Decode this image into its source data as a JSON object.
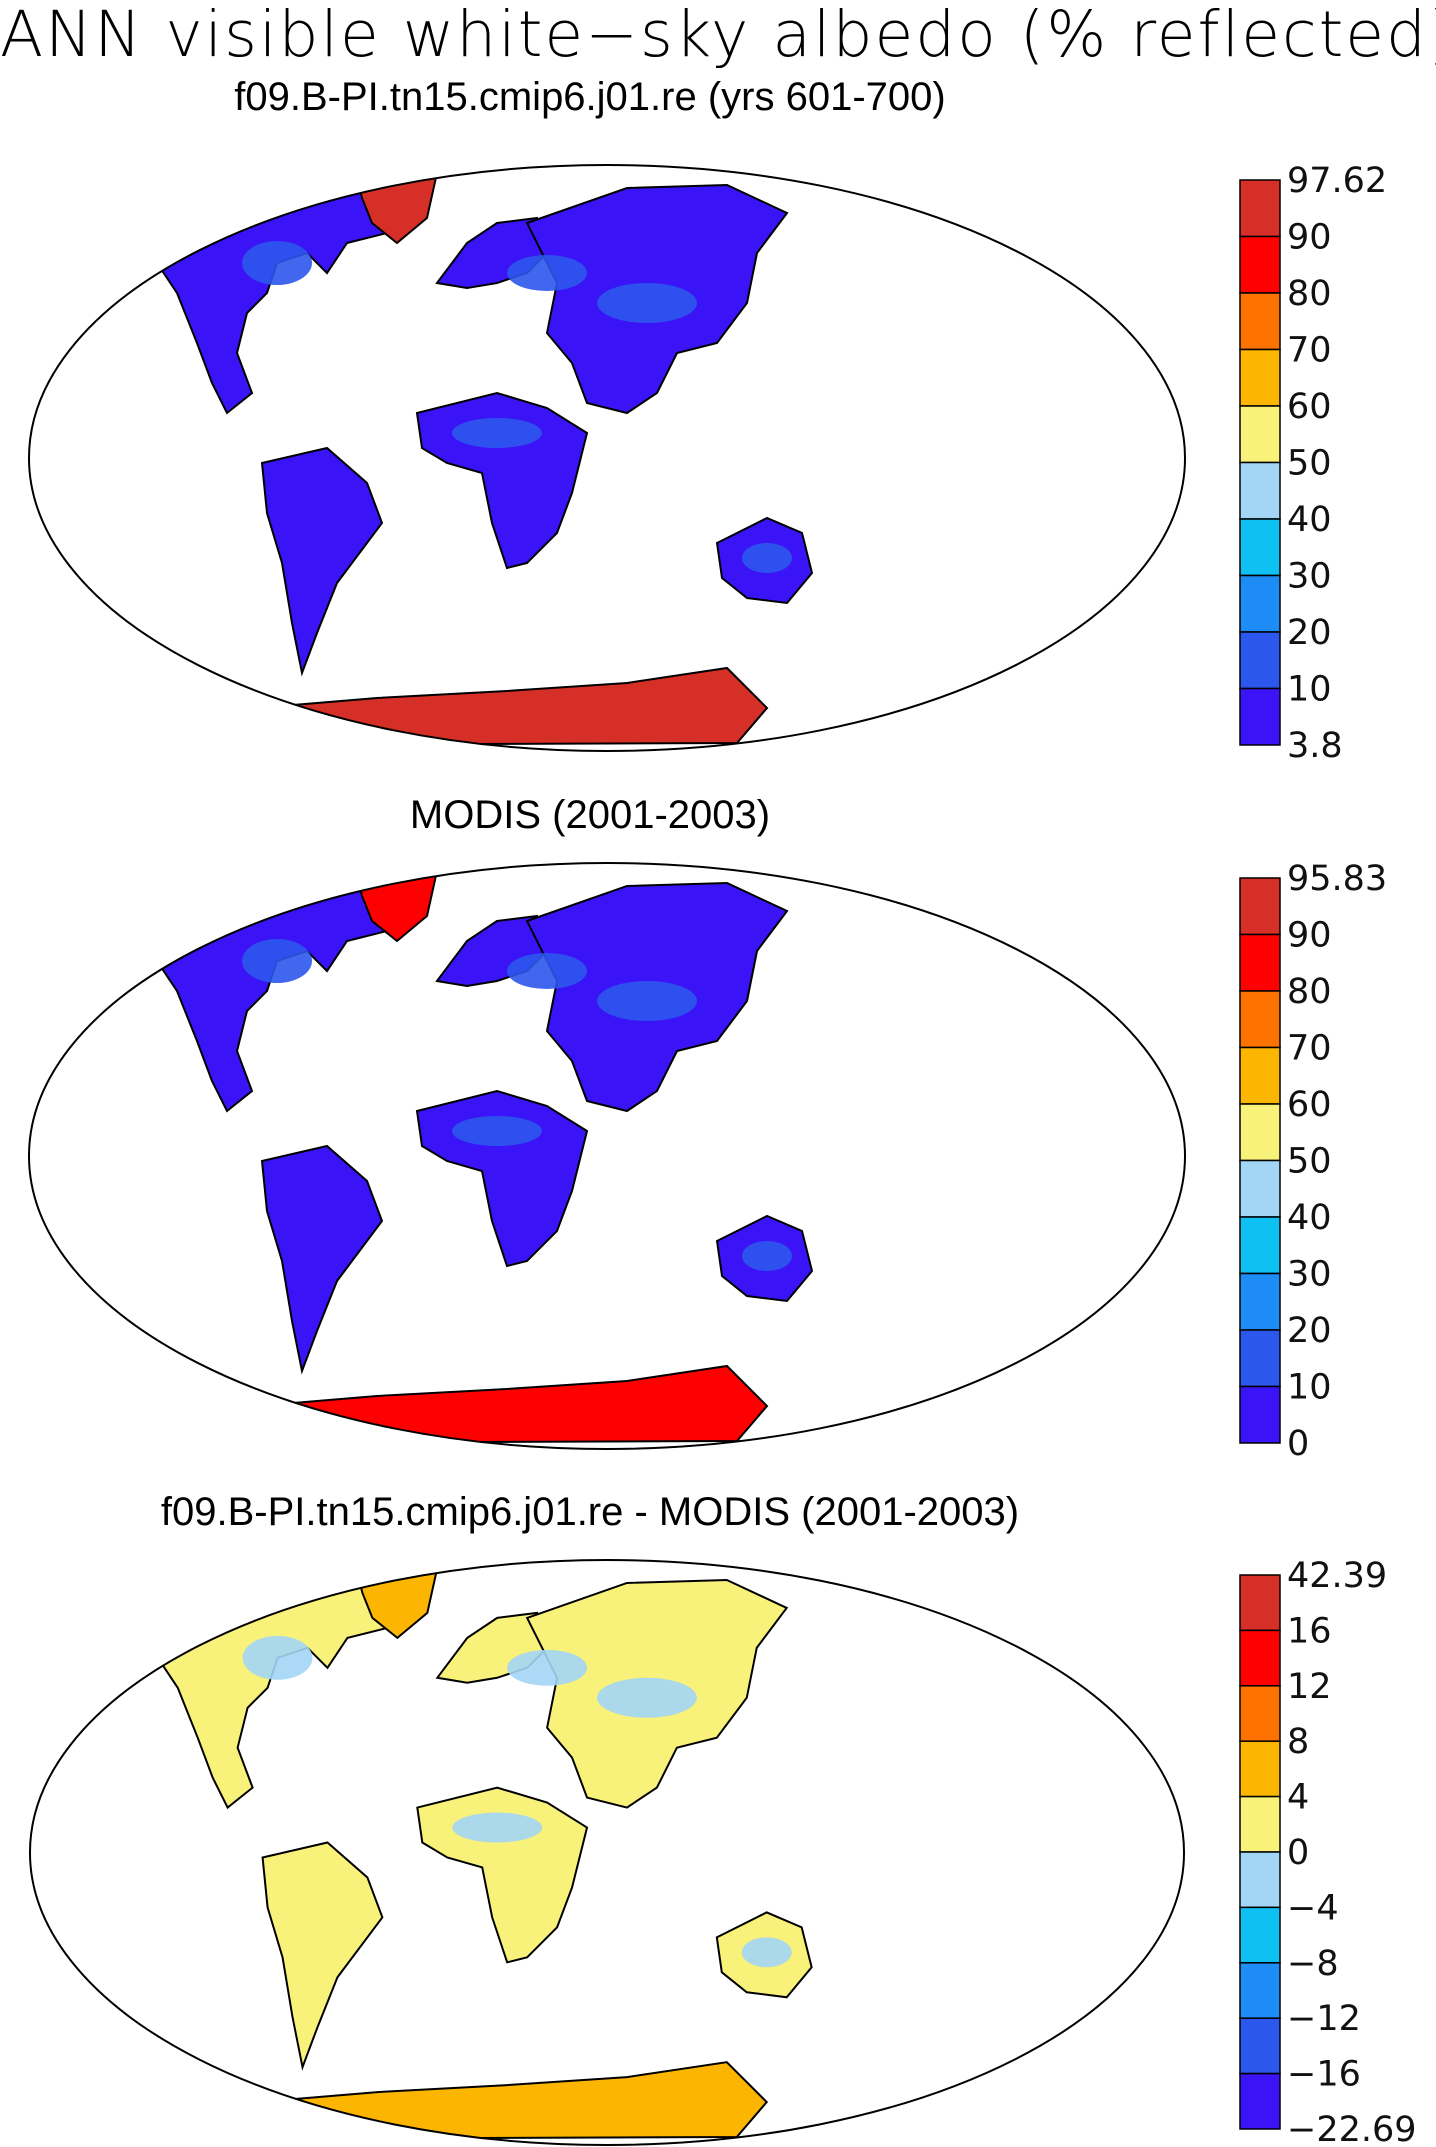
{
  "title": "ANN visible white−sky albedo (% reflected)",
  "panels": [
    {
      "title": "f09.B-PI.tn15.cmip6.j01.re (yrs 601-700)",
      "colorbar": {
        "labels": [
          "97.62",
          "90",
          "80",
          "70",
          "60",
          "50",
          "40",
          "30",
          "20",
          "10",
          "3.8"
        ],
        "colors": [
          "#d62f27",
          "#fe0000",
          "#fe7300",
          "#fcb500",
          "#f8f27a",
          "#a3d6f5",
          "#0fc0f3",
          "#1e8cf5",
          "#2c57ec",
          "#3a14f7"
        ]
      },
      "fills": {
        "ocean": "#ffffff",
        "land_main": "#3a14f7",
        "land_accent": "#2c57ec",
        "ice": "#d62f27"
      }
    },
    {
      "title": "MODIS (2001-2003)",
      "colorbar": {
        "labels": [
          "95.83",
          "90",
          "80",
          "70",
          "60",
          "50",
          "40",
          "30",
          "20",
          "10",
          "0"
        ],
        "colors": [
          "#d62f27",
          "#fe0000",
          "#fe7300",
          "#fcb500",
          "#f8f27a",
          "#a3d6f5",
          "#0fc0f3",
          "#1e8cf5",
          "#2c57ec",
          "#3a14f7"
        ]
      },
      "fills": {
        "ocean": "#ffffff",
        "land_main": "#3a14f7",
        "land_accent": "#2c57ec",
        "ice": "#fe0000"
      }
    },
    {
      "title": "f09.B-PI.tn15.cmip6.j01.re - MODIS (2001-2003)",
      "colorbar": {
        "labels": [
          "42.39",
          "16",
          "12",
          "8",
          "4",
          "0",
          "−4",
          "−8",
          "−12",
          "−16",
          "−22.69"
        ],
        "colors": [
          "#d62f27",
          "#fe0000",
          "#fe7300",
          "#fcb500",
          "#f8f27a",
          "#a3d6f5",
          "#0fc0f3",
          "#1e8cf5",
          "#2c57ec",
          "#3a14f7"
        ]
      },
      "fills": {
        "ocean": "#ffffff",
        "land_main": "#f8f27a",
        "land_accent": "#a3d6f5",
        "ice": "#fcb500"
      }
    }
  ]
}
